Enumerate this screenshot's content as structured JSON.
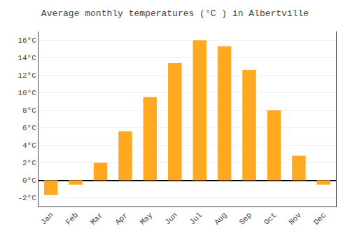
{
  "chart_data": {
    "type": "bar",
    "title": "Average monthly temperatures (°C ) in Albertville",
    "categories": [
      "Jan",
      "Feb",
      "Mar",
      "Apr",
      "May",
      "Jun",
      "Jul",
      "Aug",
      "Sep",
      "Oct",
      "Nov",
      "Dec"
    ],
    "values": [
      -1.7,
      -0.5,
      2.0,
      5.6,
      9.5,
      13.4,
      16.0,
      15.3,
      12.6,
      8.0,
      2.8,
      -0.5
    ],
    "color": "#FFA820",
    "ylim": [
      -3,
      17
    ],
    "yticks": [
      {
        "value": -2,
        "label": "-2°C"
      },
      {
        "value": 0,
        "label": "0°C"
      },
      {
        "value": 2,
        "label": "2°C"
      },
      {
        "value": 4,
        "label": "4°C"
      },
      {
        "value": 6,
        "label": "6°C"
      },
      {
        "value": 8,
        "label": "8°C"
      },
      {
        "value": 10,
        "label": "10°C"
      },
      {
        "value": 12,
        "label": "12°C"
      },
      {
        "value": 14,
        "label": "14°C"
      },
      {
        "value": 16,
        "label": "16°C"
      }
    ],
    "grid": true
  }
}
